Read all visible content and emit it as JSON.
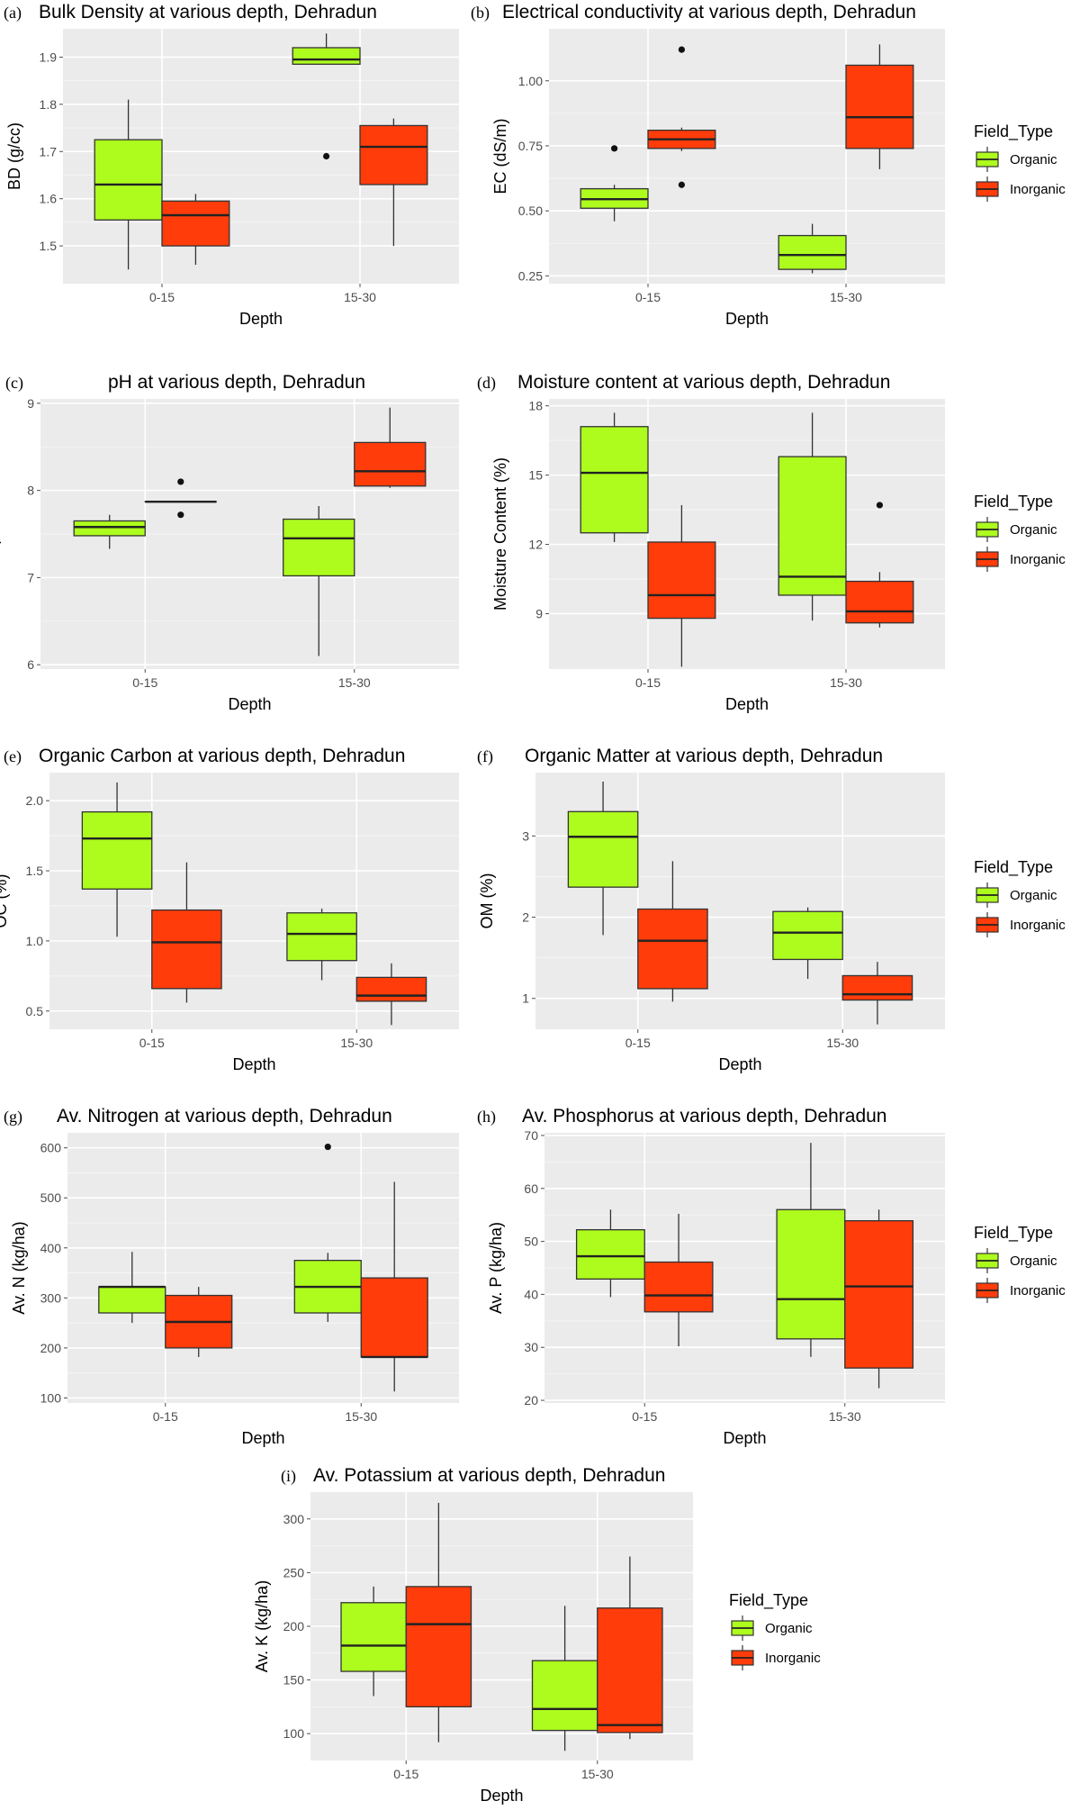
{
  "figure": {
    "legend_title": "Field_Type",
    "groups": [
      "Organic",
      "Inorganic"
    ],
    "colors": {
      "Organic": "#adfc1e",
      "Inorganic": "#ff3c0a",
      "panel_bg": "#ebebeb",
      "grid": "#ffffff"
    }
  },
  "chart_data": [
    {
      "id": "a",
      "tag": "(a)",
      "type": "box",
      "title": "Bulk Density at various depth, Dehradun",
      "xlabel": "Depth",
      "ylabel": "BD (g/cc)",
      "categories": [
        "0-15",
        "15-30"
      ],
      "ylim": [
        1.42,
        1.96
      ],
      "yticks": [
        1.5,
        1.6,
        1.7,
        1.8,
        1.9
      ],
      "ytick_labels": [
        "1.5",
        "1.6",
        "1.7",
        "1.8",
        "1.9"
      ],
      "legend": false,
      "series": [
        {
          "name": "Organic",
          "boxes": [
            {
              "min": 1.45,
              "q1": 1.555,
              "median": 1.63,
              "q3": 1.725,
              "max": 1.81,
              "outliers": []
            },
            {
              "min": 1.885,
              "q1": 1.885,
              "median": 1.895,
              "q3": 1.92,
              "max": 1.95,
              "outliers": [
                1.69
              ]
            }
          ]
        },
        {
          "name": "Inorganic",
          "boxes": [
            {
              "min": 1.46,
              "q1": 1.5,
              "median": 1.565,
              "q3": 1.595,
              "max": 1.61,
              "outliers": []
            },
            {
              "min": 1.5,
              "q1": 1.63,
              "median": 1.71,
              "q3": 1.755,
              "max": 1.77,
              "outliers": []
            }
          ]
        }
      ]
    },
    {
      "id": "b",
      "tag": "(b)",
      "type": "box",
      "title": "Electrical conductivity at various depth, Dehradun",
      "xlabel": "Depth",
      "ylabel": "EC (dS/m)",
      "categories": [
        "0-15",
        "15-30"
      ],
      "ylim": [
        0.22,
        1.2
      ],
      "yticks": [
        0.25,
        0.5,
        0.75,
        1.0
      ],
      "ytick_labels": [
        "0.25",
        "0.50",
        "0.75",
        "1.00"
      ],
      "legend": true,
      "series": [
        {
          "name": "Organic",
          "boxes": [
            {
              "min": 0.46,
              "q1": 0.51,
              "median": 0.545,
              "q3": 0.585,
              "max": 0.6,
              "outliers": [
                0.74
              ]
            },
            {
              "min": 0.26,
              "q1": 0.275,
              "median": 0.33,
              "q3": 0.405,
              "max": 0.45,
              "outliers": []
            }
          ]
        },
        {
          "name": "Inorganic",
          "boxes": [
            {
              "min": 0.73,
              "q1": 0.74,
              "median": 0.775,
              "q3": 0.81,
              "max": 0.82,
              "outliers": [
                1.12,
                0.6
              ]
            },
            {
              "min": 0.66,
              "q1": 0.74,
              "median": 0.86,
              "q3": 1.06,
              "max": 1.14,
              "outliers": []
            }
          ]
        }
      ]
    },
    {
      "id": "c",
      "tag": "(c)",
      "type": "box",
      "title": "pH at various depth, Dehradun",
      "xlabel": "Depth",
      "ylabel": "pH",
      "categories": [
        "0-15",
        "15-30"
      ],
      "ylim": [
        5.95,
        9.05
      ],
      "yticks": [
        6,
        7,
        8,
        9
      ],
      "ytick_labels": [
        "6",
        "7",
        "8",
        "9"
      ],
      "legend": false,
      "series": [
        {
          "name": "Organic",
          "boxes": [
            {
              "min": 7.33,
              "q1": 7.48,
              "median": 7.58,
              "q3": 7.65,
              "max": 7.72,
              "outliers": []
            },
            {
              "min": 6.1,
              "q1": 7.02,
              "median": 7.45,
              "q3": 7.67,
              "max": 7.82,
              "outliers": []
            }
          ]
        },
        {
          "name": "Inorganic",
          "boxes": [
            {
              "min": 7.87,
              "q1": 7.87,
              "median": 7.87,
              "q3": 7.87,
              "max": 7.87,
              "outliers": [
                8.1,
                7.72
              ]
            },
            {
              "min": 8.03,
              "q1": 8.05,
              "median": 8.22,
              "q3": 8.55,
              "max": 8.95,
              "outliers": []
            }
          ]
        }
      ]
    },
    {
      "id": "d",
      "tag": "(d)",
      "type": "box",
      "title": "Moisture content at various depth, Dehradun",
      "xlabel": "Depth",
      "ylabel": "Moisture Content (%)",
      "categories": [
        "0-15",
        "15-30"
      ],
      "ylim": [
        6.6,
        18.3
      ],
      "yticks": [
        9,
        12,
        15,
        18
      ],
      "ytick_labels": [
        "9",
        "12",
        "15",
        "18"
      ],
      "legend": true,
      "series": [
        {
          "name": "Organic",
          "boxes": [
            {
              "min": 12.1,
              "q1": 12.5,
              "median": 15.1,
              "q3": 17.1,
              "max": 17.7,
              "outliers": []
            },
            {
              "min": 8.7,
              "q1": 9.8,
              "median": 10.6,
              "q3": 15.8,
              "max": 17.7,
              "outliers": []
            }
          ]
        },
        {
          "name": "Inorganic",
          "boxes": [
            {
              "min": 6.7,
              "q1": 8.8,
              "median": 9.8,
              "q3": 12.1,
              "max": 13.7,
              "outliers": []
            },
            {
              "min": 8.4,
              "q1": 8.6,
              "median": 9.1,
              "q3": 10.4,
              "max": 10.8,
              "outliers": [
                13.7
              ]
            }
          ]
        }
      ]
    },
    {
      "id": "e",
      "tag": "(e)",
      "type": "box",
      "title": "Organic Carbon at various depth, Dehradun",
      "xlabel": "Depth",
      "ylabel": "OC (%)",
      "categories": [
        "0-15",
        "15-30"
      ],
      "ylim": [
        0.37,
        2.2
      ],
      "yticks": [
        0.5,
        1.0,
        1.5,
        2.0
      ],
      "ytick_labels": [
        "0.5",
        "1.0",
        "1.5",
        "2.0"
      ],
      "legend": false,
      "series": [
        {
          "name": "Organic",
          "boxes": [
            {
              "min": 1.03,
              "q1": 1.37,
              "median": 1.73,
              "q3": 1.92,
              "max": 2.13,
              "outliers": []
            },
            {
              "min": 0.72,
              "q1": 0.86,
              "median": 1.05,
              "q3": 1.2,
              "max": 1.23,
              "outliers": []
            }
          ]
        },
        {
          "name": "Inorganic",
          "boxes": [
            {
              "min": 0.56,
              "q1": 0.66,
              "median": 0.99,
              "q3": 1.22,
              "max": 1.56,
              "outliers": []
            },
            {
              "min": 0.4,
              "q1": 0.57,
              "median": 0.61,
              "q3": 0.74,
              "max": 0.84,
              "outliers": []
            }
          ]
        }
      ]
    },
    {
      "id": "f",
      "tag": "(f)",
      "type": "box",
      "title": "Organic Matter at various depth, Dehradun",
      "xlabel": "Depth",
      "ylabel": "OM (%)",
      "categories": [
        "0-15",
        "15-30"
      ],
      "ylim": [
        0.62,
        3.78
      ],
      "yticks": [
        1,
        2,
        3
      ],
      "ytick_labels": [
        "1",
        "2",
        "3"
      ],
      "legend": true,
      "series": [
        {
          "name": "Organic",
          "boxes": [
            {
              "min": 1.78,
              "q1": 2.37,
              "median": 2.99,
              "q3": 3.3,
              "max": 3.67,
              "outliers": []
            },
            {
              "min": 1.24,
              "q1": 1.48,
              "median": 1.81,
              "q3": 2.07,
              "max": 2.12,
              "outliers": []
            }
          ]
        },
        {
          "name": "Inorganic",
          "boxes": [
            {
              "min": 0.96,
              "q1": 1.12,
              "median": 1.71,
              "q3": 2.1,
              "max": 2.69,
              "outliers": []
            },
            {
              "min": 0.68,
              "q1": 0.98,
              "median": 1.05,
              "q3": 1.28,
              "max": 1.45,
              "outliers": []
            }
          ]
        }
      ]
    },
    {
      "id": "g",
      "tag": "(g)",
      "type": "box",
      "title": "Av. Nitrogen at various depth, Dehradun",
      "xlabel": "Depth",
      "ylabel": "Av. N (kg/ha)",
      "categories": [
        "0-15",
        "15-30"
      ],
      "ylim": [
        90,
        630
      ],
      "yticks": [
        100,
        200,
        300,
        400,
        500,
        600
      ],
      "ytick_labels": [
        "100",
        "200",
        "300",
        "400",
        "500",
        "600"
      ],
      "legend": false,
      "series": [
        {
          "name": "Organic",
          "boxes": [
            {
              "min": 250,
              "q1": 270,
              "median": 322,
              "q3": 322,
              "max": 392,
              "outliers": []
            },
            {
              "min": 252,
              "q1": 270,
              "median": 322,
              "q3": 375,
              "max": 390,
              "outliers": [
                602
              ]
            }
          ]
        },
        {
          "name": "Inorganic",
          "boxes": [
            {
              "min": 182,
              "q1": 200,
              "median": 252,
              "q3": 305,
              "max": 322,
              "outliers": []
            },
            {
              "min": 113,
              "q1": 182,
              "median": 182,
              "q3": 340,
              "max": 532,
              "outliers": []
            }
          ]
        }
      ]
    },
    {
      "id": "h",
      "tag": "(h)",
      "type": "box",
      "title": "Av. Phosphorus at various depth, Dehradun",
      "xlabel": "Depth",
      "ylabel": "Av. P (kg/ha)",
      "categories": [
        "0-15",
        "15-30"
      ],
      "ylim": [
        19.5,
        70.5
      ],
      "yticks": [
        20,
        30,
        40,
        50,
        60,
        70
      ],
      "ytick_labels": [
        "20",
        "30",
        "40",
        "50",
        "60",
        "70"
      ],
      "legend": true,
      "series": [
        {
          "name": "Organic",
          "boxes": [
            {
              "min": 39.5,
              "q1": 42.9,
              "median": 47.2,
              "q3": 52.2,
              "max": 56.0,
              "outliers": []
            },
            {
              "min": 28.2,
              "q1": 31.6,
              "median": 39.1,
              "q3": 56.0,
              "max": 68.6,
              "outliers": []
            }
          ]
        },
        {
          "name": "Inorganic",
          "boxes": [
            {
              "min": 30.2,
              "q1": 36.7,
              "median": 39.8,
              "q3": 46.1,
              "max": 55.2,
              "outliers": []
            },
            {
              "min": 22.3,
              "q1": 26.1,
              "median": 41.5,
              "q3": 53.9,
              "max": 56.0,
              "outliers": []
            }
          ]
        }
      ]
    },
    {
      "id": "i",
      "tag": "(i)",
      "type": "box",
      "title": "Av. Potassium at various depth, Dehradun",
      "xlabel": "Depth",
      "ylabel": "Av. K (kg/ha)",
      "categories": [
        "0-15",
        "15-30"
      ],
      "ylim": [
        75,
        325
      ],
      "yticks": [
        100,
        150,
        200,
        250,
        300
      ],
      "ytick_labels": [
        "100",
        "150",
        "200",
        "250",
        "300"
      ],
      "legend": true,
      "series": [
        {
          "name": "Organic",
          "boxes": [
            {
              "min": 135,
              "q1": 158,
              "median": 182,
              "q3": 222,
              "max": 237,
              "outliers": []
            },
            {
              "min": 84,
              "q1": 103,
              "median": 123,
              "q3": 168,
              "max": 219,
              "outliers": []
            }
          ]
        },
        {
          "name": "Inorganic",
          "boxes": [
            {
              "min": 92,
              "q1": 125,
              "median": 202,
              "q3": 237,
              "max": 315,
              "outliers": []
            },
            {
              "min": 95,
              "q1": 101,
              "median": 108,
              "q3": 217,
              "max": 265,
              "outliers": []
            }
          ]
        }
      ]
    }
  ]
}
